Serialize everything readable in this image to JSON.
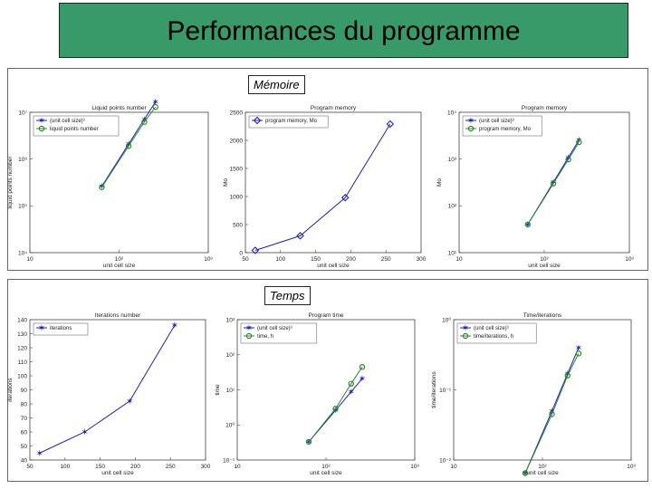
{
  "title": "Performances du programme",
  "sections": [
    {
      "label": "Mémoire"
    },
    {
      "label": "Temps"
    }
  ],
  "colors": {
    "header_bg": "#389a68",
    "blue": "#2020c0",
    "green": "#2a8a2a"
  },
  "chart_data": [
    {
      "type": "line",
      "title": "Liquid points number",
      "xlabel": "unit cell size",
      "ylabel": "liquid points number",
      "xscale": "log",
      "yscale": "log",
      "xlim": [
        10,
        1000
      ],
      "ylim": [
        10000,
        10000000
      ],
      "xticks": [
        {
          "v": 10,
          "label": "10"
        },
        {
          "v": 100,
          "label": "10²"
        },
        {
          "v": 1000,
          "label": "10³"
        }
      ],
      "yticks": [
        {
          "v": 10000,
          "label": "10⁴"
        },
        {
          "v": 100000,
          "label": "10⁵"
        },
        {
          "v": 1000000,
          "label": "10⁶"
        },
        {
          "v": 10000000,
          "label": "10⁷"
        }
      ],
      "legend_position": "top-left",
      "series": [
        {
          "name": "(unit cell size)³",
          "color": "#2020c0",
          "marker": "star",
          "x": [
            64,
            128,
            192,
            256
          ],
          "y": [
            262144,
            2097152,
            7077888,
            16777216
          ]
        },
        {
          "name": "liquid points number",
          "color": "#2a8a2a",
          "marker": "circle",
          "x": [
            64,
            128,
            192,
            256
          ],
          "y": [
            250000,
            1900000,
            6200000,
            13000000
          ]
        }
      ]
    },
    {
      "type": "line",
      "title": "Program memory",
      "xlabel": "unit cell size",
      "ylabel": "Mo",
      "xscale": "linear",
      "yscale": "linear",
      "xlim": [
        50,
        300
      ],
      "ylim": [
        0,
        2500
      ],
      "xticks": [
        {
          "v": 50,
          "label": "50"
        },
        {
          "v": 100,
          "label": "100"
        },
        {
          "v": 150,
          "label": "150"
        },
        {
          "v": 200,
          "label": "200"
        },
        {
          "v": 250,
          "label": "250"
        },
        {
          "v": 300,
          "label": "300"
        }
      ],
      "yticks": [
        {
          "v": 0,
          "label": "0"
        },
        {
          "v": 500,
          "label": "500"
        },
        {
          "v": 1000,
          "label": "1000"
        },
        {
          "v": 1500,
          "label": "1500"
        },
        {
          "v": 2000,
          "label": "2000"
        },
        {
          "v": 2500,
          "label": "2500"
        }
      ],
      "legend_position": "top-left",
      "series": [
        {
          "name": "program memory, Mo",
          "color": "#2020c0",
          "marker": "diamond",
          "x": [
            64,
            128,
            192,
            256
          ],
          "y": [
            40,
            300,
            980,
            2290
          ]
        }
      ]
    },
    {
      "type": "line",
      "title": "Program memory",
      "xlabel": "unit cell size",
      "ylabel": "Mo",
      "xscale": "log",
      "yscale": "log",
      "xlim": [
        10,
        1000
      ],
      "ylim": [
        10,
        10000
      ],
      "xticks": [
        {
          "v": 10,
          "label": "10"
        },
        {
          "v": 100,
          "label": "10²"
        },
        {
          "v": 1000,
          "label": "10³"
        }
      ],
      "yticks": [
        {
          "v": 10,
          "label": "10¹"
        },
        {
          "v": 100,
          "label": "10²"
        },
        {
          "v": 1000,
          "label": "10³"
        },
        {
          "v": 10000,
          "label": "10⁴"
        }
      ],
      "legend_position": "top-left",
      "series": [
        {
          "name": "(unit cell size)³",
          "color": "#2020c0",
          "marker": "star",
          "x": [
            64,
            128,
            192,
            256
          ],
          "y": [
            40,
            320,
            1080,
            2560
          ]
        },
        {
          "name": "program memory, Mo",
          "color": "#2a8a2a",
          "marker": "circle",
          "x": [
            64,
            128,
            192,
            256
          ],
          "y": [
            40,
            300,
            980,
            2290
          ]
        }
      ]
    },
    {
      "type": "line",
      "title": "Iterations number",
      "xlabel": "unit cell size",
      "ylabel": "iterations",
      "xscale": "linear",
      "yscale": "linear",
      "xlim": [
        50,
        300
      ],
      "ylim": [
        40,
        140
      ],
      "xticks": [
        {
          "v": 50,
          "label": "50"
        },
        {
          "v": 100,
          "label": "100"
        },
        {
          "v": 150,
          "label": "150"
        },
        {
          "v": 200,
          "label": "200"
        },
        {
          "v": 250,
          "label": "250"
        },
        {
          "v": 300,
          "label": "300"
        }
      ],
      "yticks": [
        {
          "v": 40,
          "label": "40"
        },
        {
          "v": 50,
          "label": "50"
        },
        {
          "v": 60,
          "label": "60"
        },
        {
          "v": 70,
          "label": "70"
        },
        {
          "v": 80,
          "label": "80"
        },
        {
          "v": 90,
          "label": "90"
        },
        {
          "v": 100,
          "label": "100"
        },
        {
          "v": 110,
          "label": "110"
        },
        {
          "v": 120,
          "label": "120"
        },
        {
          "v": 130,
          "label": "130"
        },
        {
          "v": 140,
          "label": "140"
        }
      ],
      "legend_position": "top-left",
      "series": [
        {
          "name": "iterations",
          "color": "#2020c0",
          "marker": "star",
          "x": [
            64,
            128,
            192,
            256
          ],
          "y": [
            45,
            60,
            82,
            136
          ]
        }
      ]
    },
    {
      "type": "line",
      "title": "Program time",
      "xlabel": "unit cell size",
      "ylabel": "time",
      "xscale": "log",
      "yscale": "log",
      "xlim": [
        10,
        1000
      ],
      "ylim": [
        0.1,
        1000
      ],
      "xticks": [
        {
          "v": 10,
          "label": "10"
        },
        {
          "v": 100,
          "label": "10²"
        },
        {
          "v": 1000,
          "label": "10³"
        }
      ],
      "yticks": [
        {
          "v": 0.1,
          "label": "10⁻¹"
        },
        {
          "v": 1,
          "label": "10⁰"
        },
        {
          "v": 10,
          "label": "10¹"
        },
        {
          "v": 100,
          "label": "10²"
        },
        {
          "v": 1000,
          "label": "10³"
        }
      ],
      "legend_position": "top-left",
      "series": [
        {
          "name": "(unit cell size)³",
          "color": "#2020c0",
          "marker": "star",
          "x": [
            64,
            128,
            192,
            256
          ],
          "y": [
            0.33,
            2.6,
            8.8,
            21
          ]
        },
        {
          "name": "time, h",
          "color": "#2a8a2a",
          "marker": "circle",
          "x": [
            64,
            128,
            192,
            256
          ],
          "y": [
            0.33,
            2.9,
            15,
            45
          ]
        }
      ]
    },
    {
      "type": "line",
      "title": "Time/iterations",
      "xlabel": "unit cell size",
      "ylabel": "time/iterations",
      "xscale": "log",
      "yscale": "log",
      "xlim": [
        10,
        1000
      ],
      "ylim": [
        0.01,
        1
      ],
      "xticks": [
        {
          "v": 10,
          "label": "10"
        },
        {
          "v": 100,
          "label": "10²"
        },
        {
          "v": 1000,
          "label": "10³"
        }
      ],
      "yticks": [
        {
          "v": 0.01,
          "label": "10⁻²"
        },
        {
          "v": 0.1,
          "label": "10⁻¹"
        },
        {
          "v": 1,
          "label": "10⁰"
        }
      ],
      "legend_position": "top-left",
      "series": [
        {
          "name": "(unit cell size)³",
          "color": "#2020c0",
          "marker": "star",
          "x": [
            64,
            128,
            192,
            256
          ],
          "y": [
            0.0065,
            0.05,
            0.17,
            0.4
          ]
        },
        {
          "name": "time/iterations, h",
          "color": "#2a8a2a",
          "marker": "circle",
          "x": [
            64,
            128,
            192,
            256
          ],
          "y": [
            0.0065,
            0.045,
            0.16,
            0.33
          ]
        }
      ]
    }
  ]
}
